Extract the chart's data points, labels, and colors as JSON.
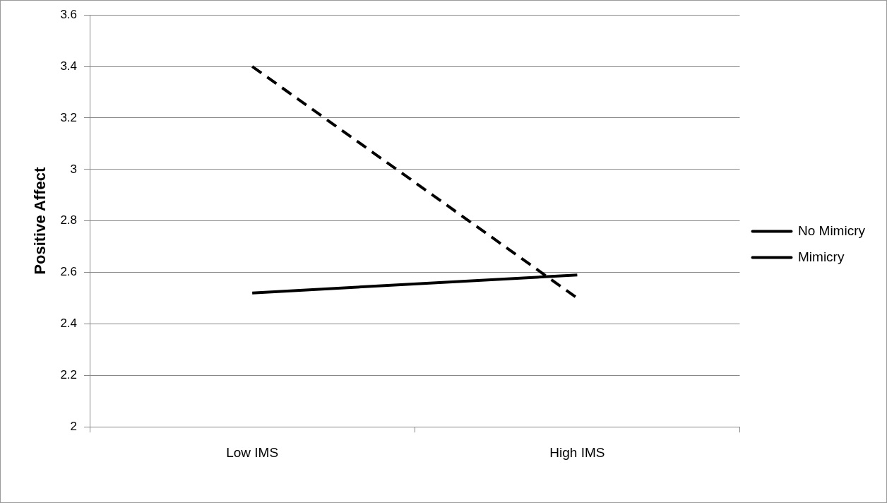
{
  "chart_data": {
    "type": "line",
    "ylabel": "Positive Affect",
    "categories": [
      "Low IMS",
      "High IMS"
    ],
    "series": [
      {
        "name": "No Mimicry",
        "color": "#000000",
        "values": [
          3.4,
          2.5
        ],
        "line_style": "dashed"
      },
      {
        "name": "Mimicry",
        "color": "#000000",
        "values": [
          2.52,
          2.59
        ],
        "line_style": "solid"
      }
    ],
    "ylim": [
      2,
      3.6
    ],
    "yticks": [
      2,
      2.2,
      2.4,
      2.6,
      2.8,
      3,
      3.2,
      3.4,
      3.6
    ],
    "grid": "y",
    "legend": "right",
    "marker": "none"
  }
}
